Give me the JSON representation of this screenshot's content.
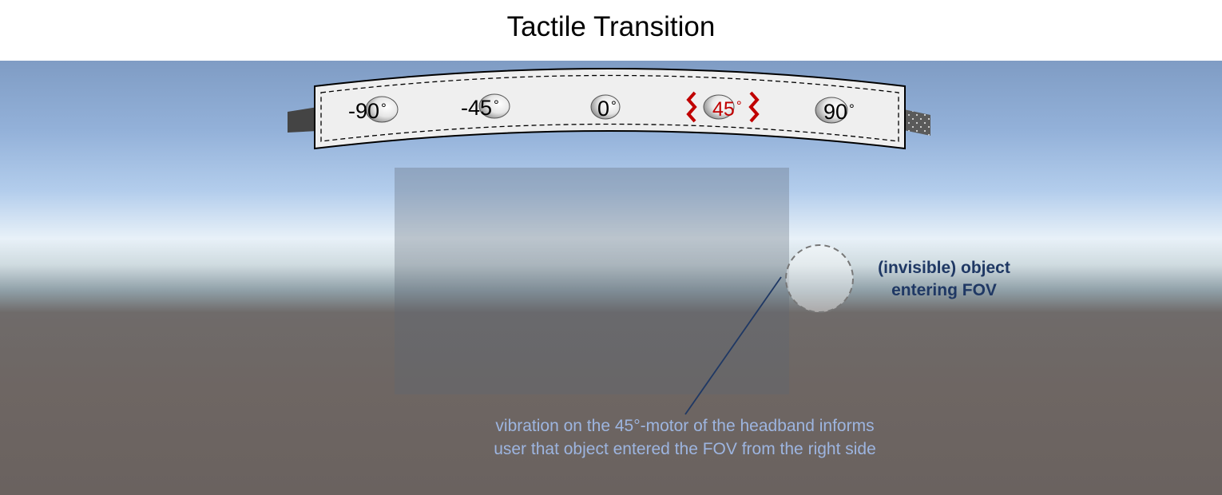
{
  "title": "Tactile Transition",
  "headband": {
    "motors": [
      {
        "label": "-90",
        "unit": "°",
        "active": false
      },
      {
        "label": "-45",
        "unit": "°",
        "active": false
      },
      {
        "label": "0",
        "unit": "°",
        "active": false
      },
      {
        "label": "45",
        "unit": "°",
        "active": true
      },
      {
        "label": "90",
        "unit": "°",
        "active": false
      }
    ]
  },
  "object_label": {
    "line1": "(invisible) object",
    "line2": "entering FOV"
  },
  "vibration_label": {
    "line1": "vibration on the 45°-motor of the headband informs",
    "line2": "user that object entered the FOV from the right side"
  },
  "colors": {
    "active_motor": "#c00000",
    "object_label": "#1f3864",
    "vibration_label": "#9db5e0",
    "pointer_line": "#1f3864"
  }
}
